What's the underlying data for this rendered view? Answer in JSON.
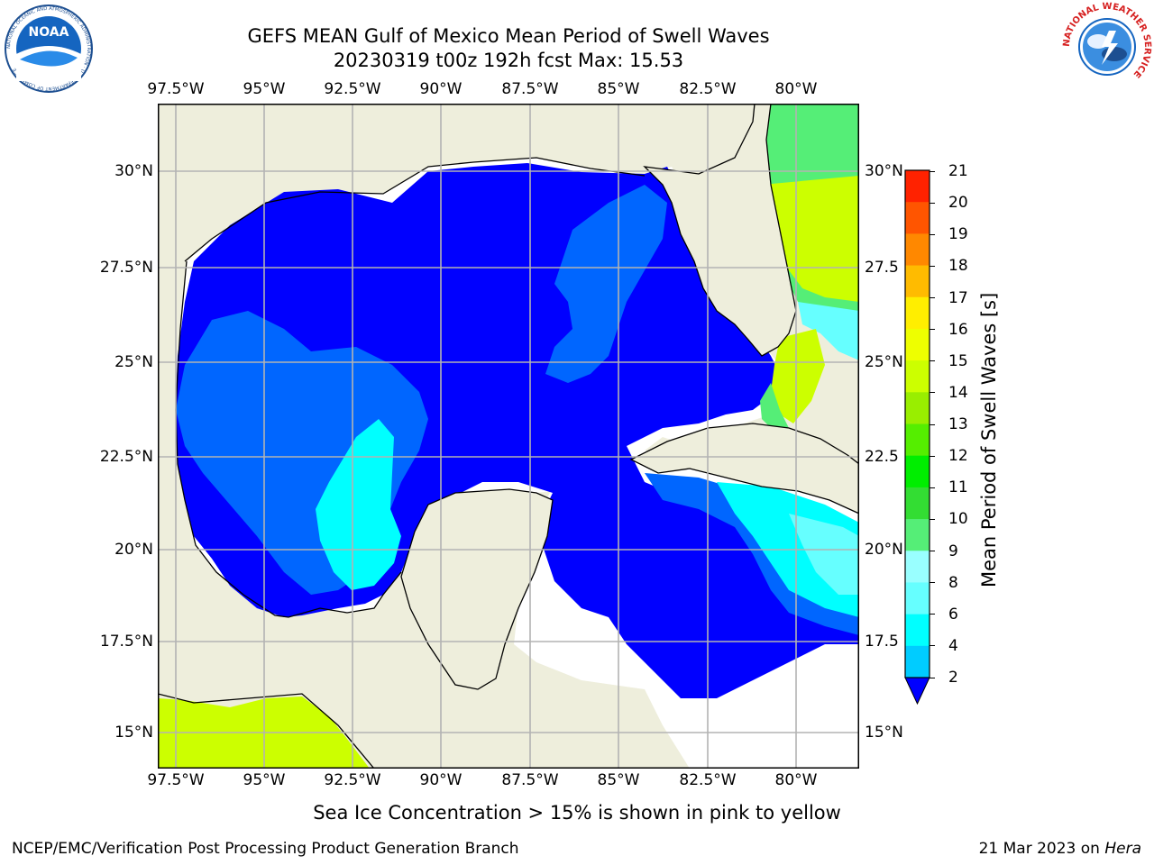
{
  "header": {
    "title_line1": "GEFS MEAN Gulf of Mexico Mean Period of Swell Waves",
    "title_line2": "20230319 t00z 192h fcst   Max: 15.53"
  },
  "logos": {
    "left": {
      "text": "NOAA",
      "ring_text": "NATIONAL OCEANIC AND ATMOSPHERIC ADMINISTRATION · U.S. DEPARTMENT OF COMMERCE",
      "icon": "noaa-logo"
    },
    "right": {
      "ring_text": "NATIONAL WEATHER SERVICE",
      "icon": "nws-logo"
    }
  },
  "map": {
    "lon_ticks": [
      "97.5°W",
      "95°W",
      "92.5°W",
      "90°W",
      "87.5°W",
      "85°W",
      "82.5°W",
      "80°W"
    ],
    "lat_ticks_left": [
      "30°N",
      "27.5°N",
      "25°N",
      "22.5°N",
      "20°N",
      "17.5°N",
      "15°N"
    ],
    "lat_ticks_right": [
      "30°N",
      "27.5",
      "25°N",
      "22.5",
      "20°N",
      "17.5",
      "15°N"
    ],
    "colors": {
      "land": "#eeeedc",
      "ocean_none": "#ffffff",
      "grid": "#b3b3b3",
      "coast": "#000000"
    }
  },
  "colorbar": {
    "label": "Mean Period of Swell Waves [s]",
    "ticks": [
      "2",
      "4",
      "6",
      "8",
      "9",
      "10",
      "11",
      "12",
      "13",
      "14",
      "15",
      "16",
      "17",
      "18",
      "19",
      "20",
      "21"
    ],
    "colors": [
      "#0066ff",
      "#00ccff",
      "#00ffff",
      "#66ffff",
      "#99ffff",
      "#55ee77",
      "#33dd33",
      "#00ee00",
      "#55ee00",
      "#99ee00",
      "#ccff00",
      "#eeff00",
      "#ffee00",
      "#ffbb00",
      "#ff8800",
      "#ff5500",
      "#ff2200",
      "#ff0000"
    ],
    "extend_color": "#0000ff"
  },
  "footer": {
    "note": "Sea Ice Concentration > 15% is shown in pink to yellow",
    "left": "NCEP/EMC/Verification Post Processing Product Generation Branch",
    "right_prefix": "21 Mar 2023 on ",
    "right_host": "Hera"
  }
}
